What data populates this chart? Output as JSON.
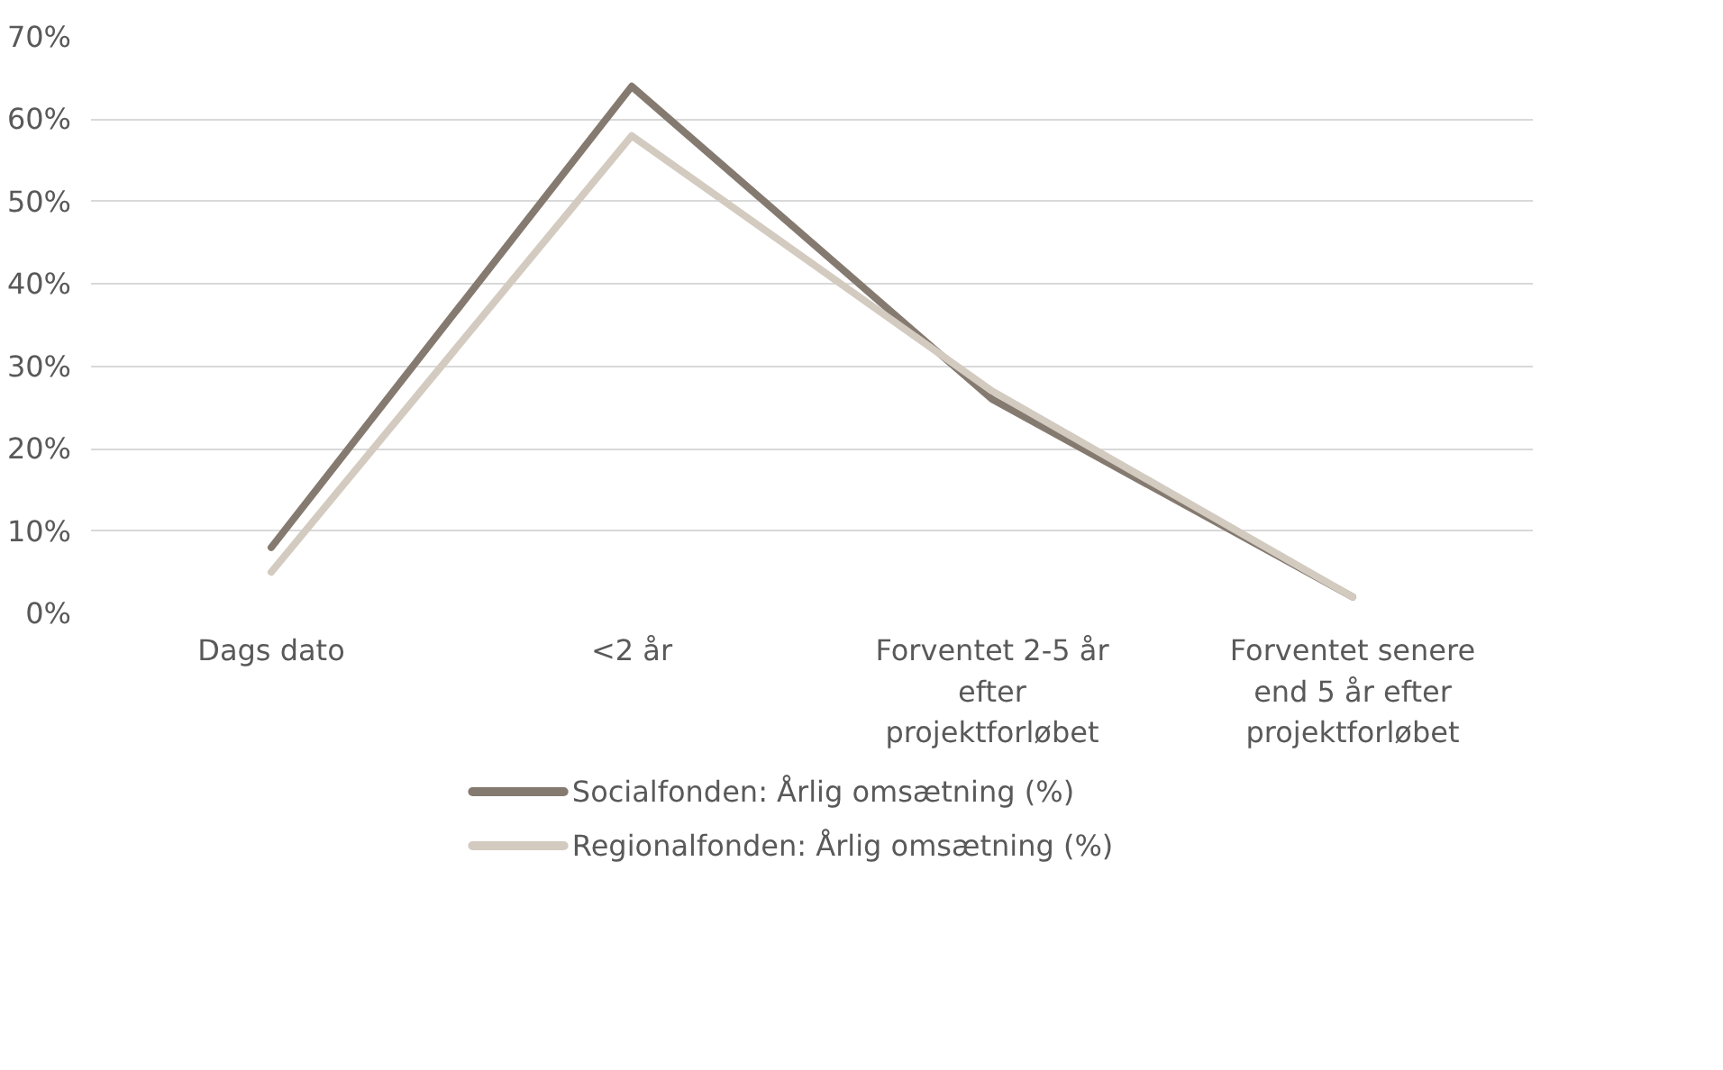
{
  "chart_data": {
    "type": "line",
    "categories": [
      "Dags dato",
      "<2 år",
      "Forventet 2-5 år efter projektforløbet",
      "Forventet senere end 5 år efter projektforløbet"
    ],
    "series": [
      {
        "name": "Socialfonden: Årlig omsætning (%)",
        "color": "#857a70",
        "values": [
          8,
          64,
          26,
          2
        ]
      },
      {
        "name": "Regionalfonden: Årlig omsætning (%)",
        "color": "#d3cbc0",
        "values": [
          5,
          58,
          27,
          2
        ]
      }
    ],
    "ylim": [
      0,
      70
    ],
    "yticks": [
      {
        "value": 0,
        "label": "0%"
      },
      {
        "value": 10,
        "label": "10%"
      },
      {
        "value": 20,
        "label": "20%"
      },
      {
        "value": 30,
        "label": "30%"
      },
      {
        "value": 40,
        "label": "40%"
      },
      {
        "value": 50,
        "label": "50%"
      },
      {
        "value": 60,
        "label": "60%"
      },
      {
        "value": 70,
        "label": "70%"
      }
    ],
    "grid": "y",
    "legend": "bottom",
    "line_style": "solid"
  }
}
